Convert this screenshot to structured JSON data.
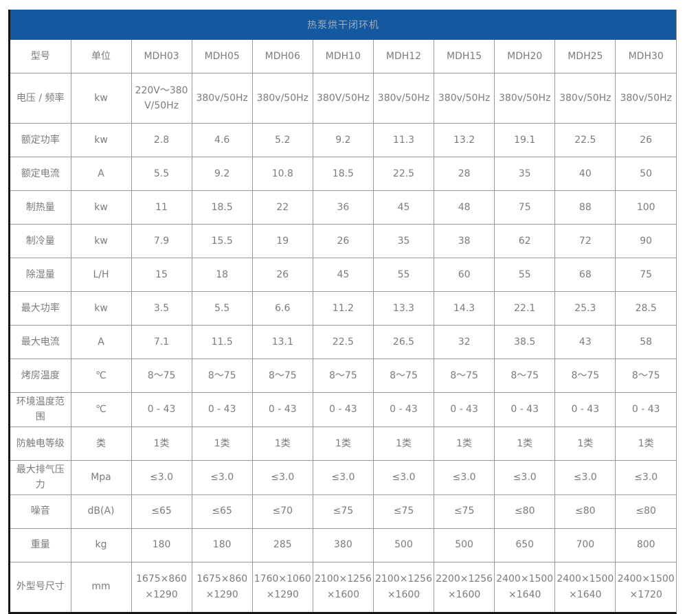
{
  "colors": {
    "header_bg": "#1458a0",
    "header_text": "#9fadc0",
    "cell_border": "#989898",
    "outer_border": "#161616",
    "cell_text": "#7b7b7b"
  },
  "table": {
    "title": "热泵烘干闭环机",
    "columns": [
      "型号",
      "单位",
      "MDH03",
      "MDH05",
      "MDH06",
      "MDH10",
      "MDH12",
      "MDH15",
      "MDH20",
      "MDH25",
      "MDH30"
    ],
    "rows": [
      {
        "label": "电压 / 频率",
        "unit": "kw",
        "values": [
          "220V～380V/50Hz",
          "380v/50Hz",
          "380v/50Hz",
          "380V/50Hz",
          "380v/50Hz",
          "380v/50Hz",
          "380v/50Hz",
          "380v/50Hz",
          "380v/50Hz"
        ]
      },
      {
        "label": "额定功率",
        "unit": "kw",
        "values": [
          "2.8",
          "4.6",
          "5.2",
          "9.2",
          "11.3",
          "13.2",
          "19.1",
          "22.5",
          "26"
        ]
      },
      {
        "label": "额定电流",
        "unit": "A",
        "values": [
          "5.5",
          "9.2",
          "10.8",
          "18.5",
          "22.5",
          "28",
          "35",
          "40",
          "50"
        ]
      },
      {
        "label": "制热量",
        "unit": "kw",
        "values": [
          "11",
          "18.5",
          "22",
          "36",
          "45",
          "48",
          "75",
          "88",
          "100"
        ]
      },
      {
        "label": "制冷量",
        "unit": "kw",
        "values": [
          "7.9",
          "15.5",
          "19",
          "26",
          "35",
          "38",
          "62",
          "72",
          "90"
        ]
      },
      {
        "label": "除湿量",
        "unit": "L/H",
        "values": [
          "15",
          "18",
          "26",
          "45",
          "55",
          "60",
          "55",
          "68",
          "75"
        ]
      },
      {
        "label": "最大功率",
        "unit": "kw",
        "values": [
          "3.5",
          "5.5",
          "6.6",
          "11.2",
          "13.3",
          "14.3",
          "22.1",
          "25.3",
          "28.5"
        ]
      },
      {
        "label": "最大电流",
        "unit": "A",
        "values": [
          "7.1",
          "11.5",
          "13.1",
          "22.5",
          "26.5",
          "32",
          "38.5",
          "43",
          "58"
        ]
      },
      {
        "label": "烤房温度",
        "unit": "℃",
        "values": [
          "8～75",
          "8～75",
          "8～75",
          "8～75",
          "8～75",
          "8～75",
          "8～75",
          "8～75",
          "8～75"
        ]
      },
      {
        "label": "环境温度范围",
        "unit": "℃",
        "values": [
          "0 - 43",
          "0 - 43",
          "0 - 43",
          "0 - 43",
          "0 - 43",
          "0 - 43",
          "0 - 43",
          "0 - 43",
          "0 - 43"
        ]
      },
      {
        "label": "防触电等级",
        "unit": "类",
        "values": [
          "1类",
          "1类",
          "1类",
          "1类",
          "1类",
          "1类",
          "1类",
          "1类",
          "1类"
        ]
      },
      {
        "label": "最大排气压力",
        "unit": "Mpa",
        "values": [
          "≤3.0",
          "≤3.0",
          "≤3.0",
          "≤3.0",
          "≤3.0",
          "≤3.0",
          "≤3.0",
          "≤3.0",
          "≤3.0"
        ]
      },
      {
        "label": "噪音",
        "unit": "dB(A)",
        "values": [
          "≤65",
          "≤65",
          "≤70",
          "≤75",
          "≤75",
          "≤75",
          "≤80",
          "≤80",
          "≤80"
        ]
      },
      {
        "label": "重量",
        "unit": "kg",
        "values": [
          "180",
          "180",
          "285",
          "380",
          "500",
          "500",
          "650",
          "700",
          "800"
        ]
      },
      {
        "label": "外型号尺寸",
        "unit": "mm",
        "values": [
          "1675×860×1290",
          "1675×860×1290",
          "1760×1060×1290",
          "2100×1256×1600",
          "2100×1256×1600",
          "2200×1256×1600",
          "2400×1500×1640",
          "2400×1500×1640",
          "2400×1500×1720"
        ]
      }
    ],
    "tall_rows": [
      0,
      14
    ]
  }
}
